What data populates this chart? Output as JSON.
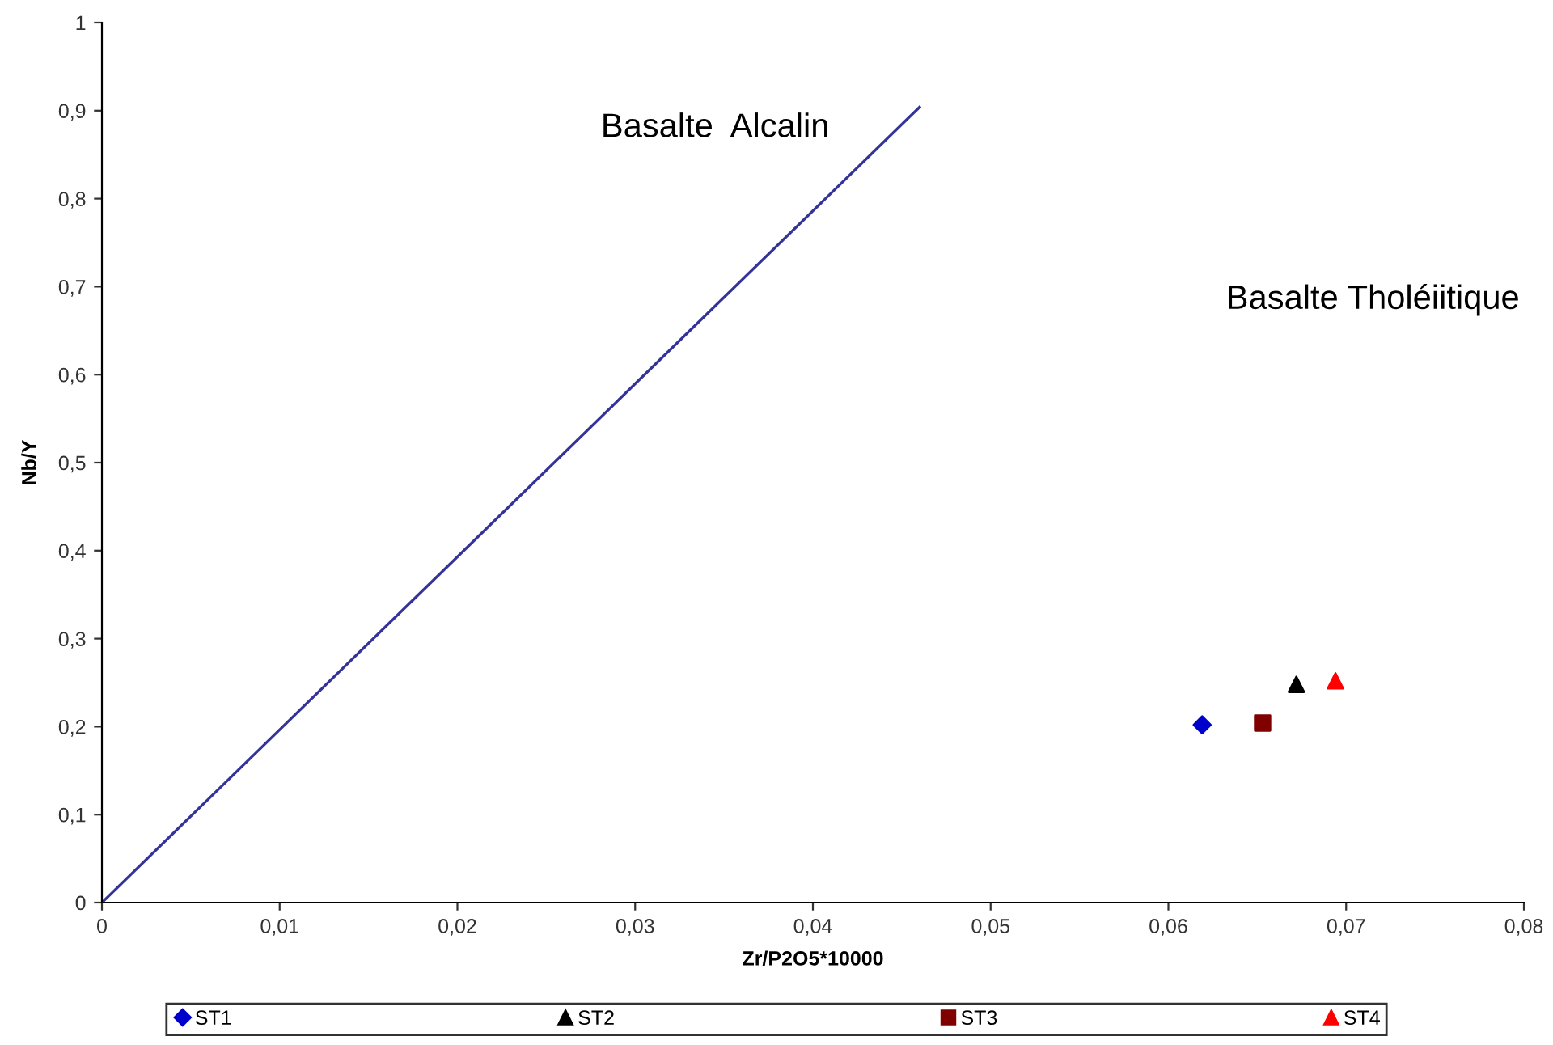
{
  "chart_data": {
    "type": "scatter",
    "xlabel": "Zr/P2O5*10000",
    "ylabel": "Nb/Y",
    "xlim": [
      0,
      0.08
    ],
    "xticks": [
      0,
      {
        "value": 0.01,
        "label": "0,01"
      },
      {
        "value": 0.02,
        "label": "0,02"
      },
      {
        "value": 0.03,
        "label": "0,03"
      },
      {
        "value": 0.04,
        "label": "0,04"
      },
      {
        "value": 0.05,
        "label": "0,05"
      },
      {
        "value": 0.06,
        "label": "0,06"
      },
      {
        "value": 0.07,
        "label": "0,07"
      },
      {
        "value": 0.08,
        "label": "0,08"
      }
    ],
    "ylim": [
      0,
      1
    ],
    "yticks": [
      0,
      {
        "value": 0.1,
        "label": "0,1"
      },
      {
        "value": 0.2,
        "label": "0,2"
      },
      {
        "value": 0.3,
        "label": "0,3"
      },
      {
        "value": 0.4,
        "label": "0,4"
      },
      {
        "value": 0.5,
        "label": "0,5"
      },
      {
        "value": 0.6,
        "label": "0,6"
      },
      {
        "value": 0.7,
        "label": "0,7"
      },
      {
        "value": 0.8,
        "label": "0,8"
      },
      {
        "value": 0.9,
        "label": "0,9"
      },
      1
    ],
    "grid": false,
    "legend": "bottom",
    "series": [
      {
        "type": "line",
        "color": "#333399",
        "x": [
          0,
          0.046
        ],
        "values": [
          0,
          0.904
        ],
        "marker": "none"
      },
      {
        "name": "ST1",
        "color": "#0000cc",
        "x": [
          0.0619
        ],
        "values": [
          0.202
        ],
        "marker": "diamond"
      },
      {
        "name": "ST2",
        "color": "#000000",
        "x": [
          0.0672
        ],
        "values": [
          0.248
        ],
        "marker": "triangle"
      },
      {
        "name": "ST3",
        "color": "#800000",
        "x": [
          0.0653
        ],
        "values": [
          0.204
        ],
        "marker": "square"
      },
      {
        "name": "ST4",
        "color": "#ff0000",
        "x": [
          0.0694
        ],
        "values": [
          0.252
        ],
        "marker": "triangle"
      }
    ],
    "annotations": [
      "Basalte  Alcalin",
      "Basalte Tholéiitique"
    ]
  }
}
